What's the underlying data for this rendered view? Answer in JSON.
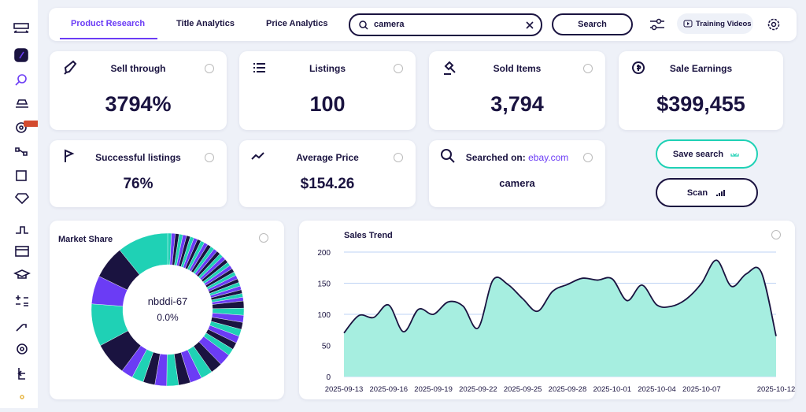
{
  "nav": {
    "tabs": [
      "Product Research",
      "Title Analytics",
      "Price Analytics"
    ],
    "search_query": "camera",
    "search_button": "Search",
    "training_videos": "Training Videos"
  },
  "stats": [
    {
      "label": "Sell through",
      "value": "3794%"
    },
    {
      "label": "Listings",
      "value": "100"
    },
    {
      "label": "Sold Items",
      "value": "3,794"
    },
    {
      "label": "Sale Earnings",
      "value": "$399,455"
    }
  ],
  "secondary": [
    {
      "label": "Successful listings",
      "value": "76%"
    },
    {
      "label": "Average Price",
      "value": "$154.26"
    },
    {
      "label": "Searched on:",
      "link": "ebay.com",
      "value": "camera"
    }
  ],
  "actions": [
    "Save search",
    "Scan"
  ],
  "chart_data": [
    {
      "type": "line",
      "title": "Sales Trend",
      "color": "#1a1340",
      "fill": "#a6eee0",
      "categories": [
        "2025-09-13",
        null,
        null,
        "2025-09-16",
        null,
        null,
        "2025-09-19",
        null,
        null,
        "2025-09-22",
        null,
        null,
        "2025-09-25",
        null,
        null,
        "2025-09-28",
        null,
        null,
        "2025-10-01",
        null,
        null,
        "2025-10-04",
        null,
        null,
        "2025-10-07",
        null,
        null,
        null,
        null,
        "2025-10-12"
      ],
      "values": [
        70,
        98,
        95,
        115,
        72,
        108,
        100,
        120,
        113,
        78,
        155,
        148,
        125,
        105,
        137,
        148,
        158,
        155,
        157,
        122,
        147,
        115,
        113,
        125,
        150,
        187,
        145,
        165,
        168,
        65
      ],
      "ylim": [
        0,
        200
      ],
      "yticks": [
        0,
        50,
        100,
        150,
        200
      ],
      "grid": true
    },
    {
      "type": "pie",
      "title": "Market Share",
      "center_label": "nbddi-67",
      "center_value": "0.0%",
      "colors": [
        "#1fd1b5",
        "#6b3cf5",
        "#1a1340"
      ],
      "values": [
        0.8,
        0.8,
        0.8,
        0.8,
        0.8,
        0.8,
        0.8,
        0.8,
        0.8,
        0.8,
        0.8,
        0.8,
        0.8,
        0.8,
        0.8,
        0.8,
        0.8,
        0.8,
        0.8,
        0.8,
        0.8,
        0.8,
        0.8,
        0.8,
        0.8,
        0.8,
        0.8,
        0.8,
        0.8,
        1.5,
        1.5,
        1.5,
        1.5,
        1.5,
        1.5,
        1.5,
        1.5,
        2.5,
        2.5,
        2.5,
        2.5,
        2.5,
        2.5,
        2.5,
        2.5,
        2.5,
        2.5,
        7,
        9,
        6,
        7,
        10.8
      ]
    }
  ]
}
